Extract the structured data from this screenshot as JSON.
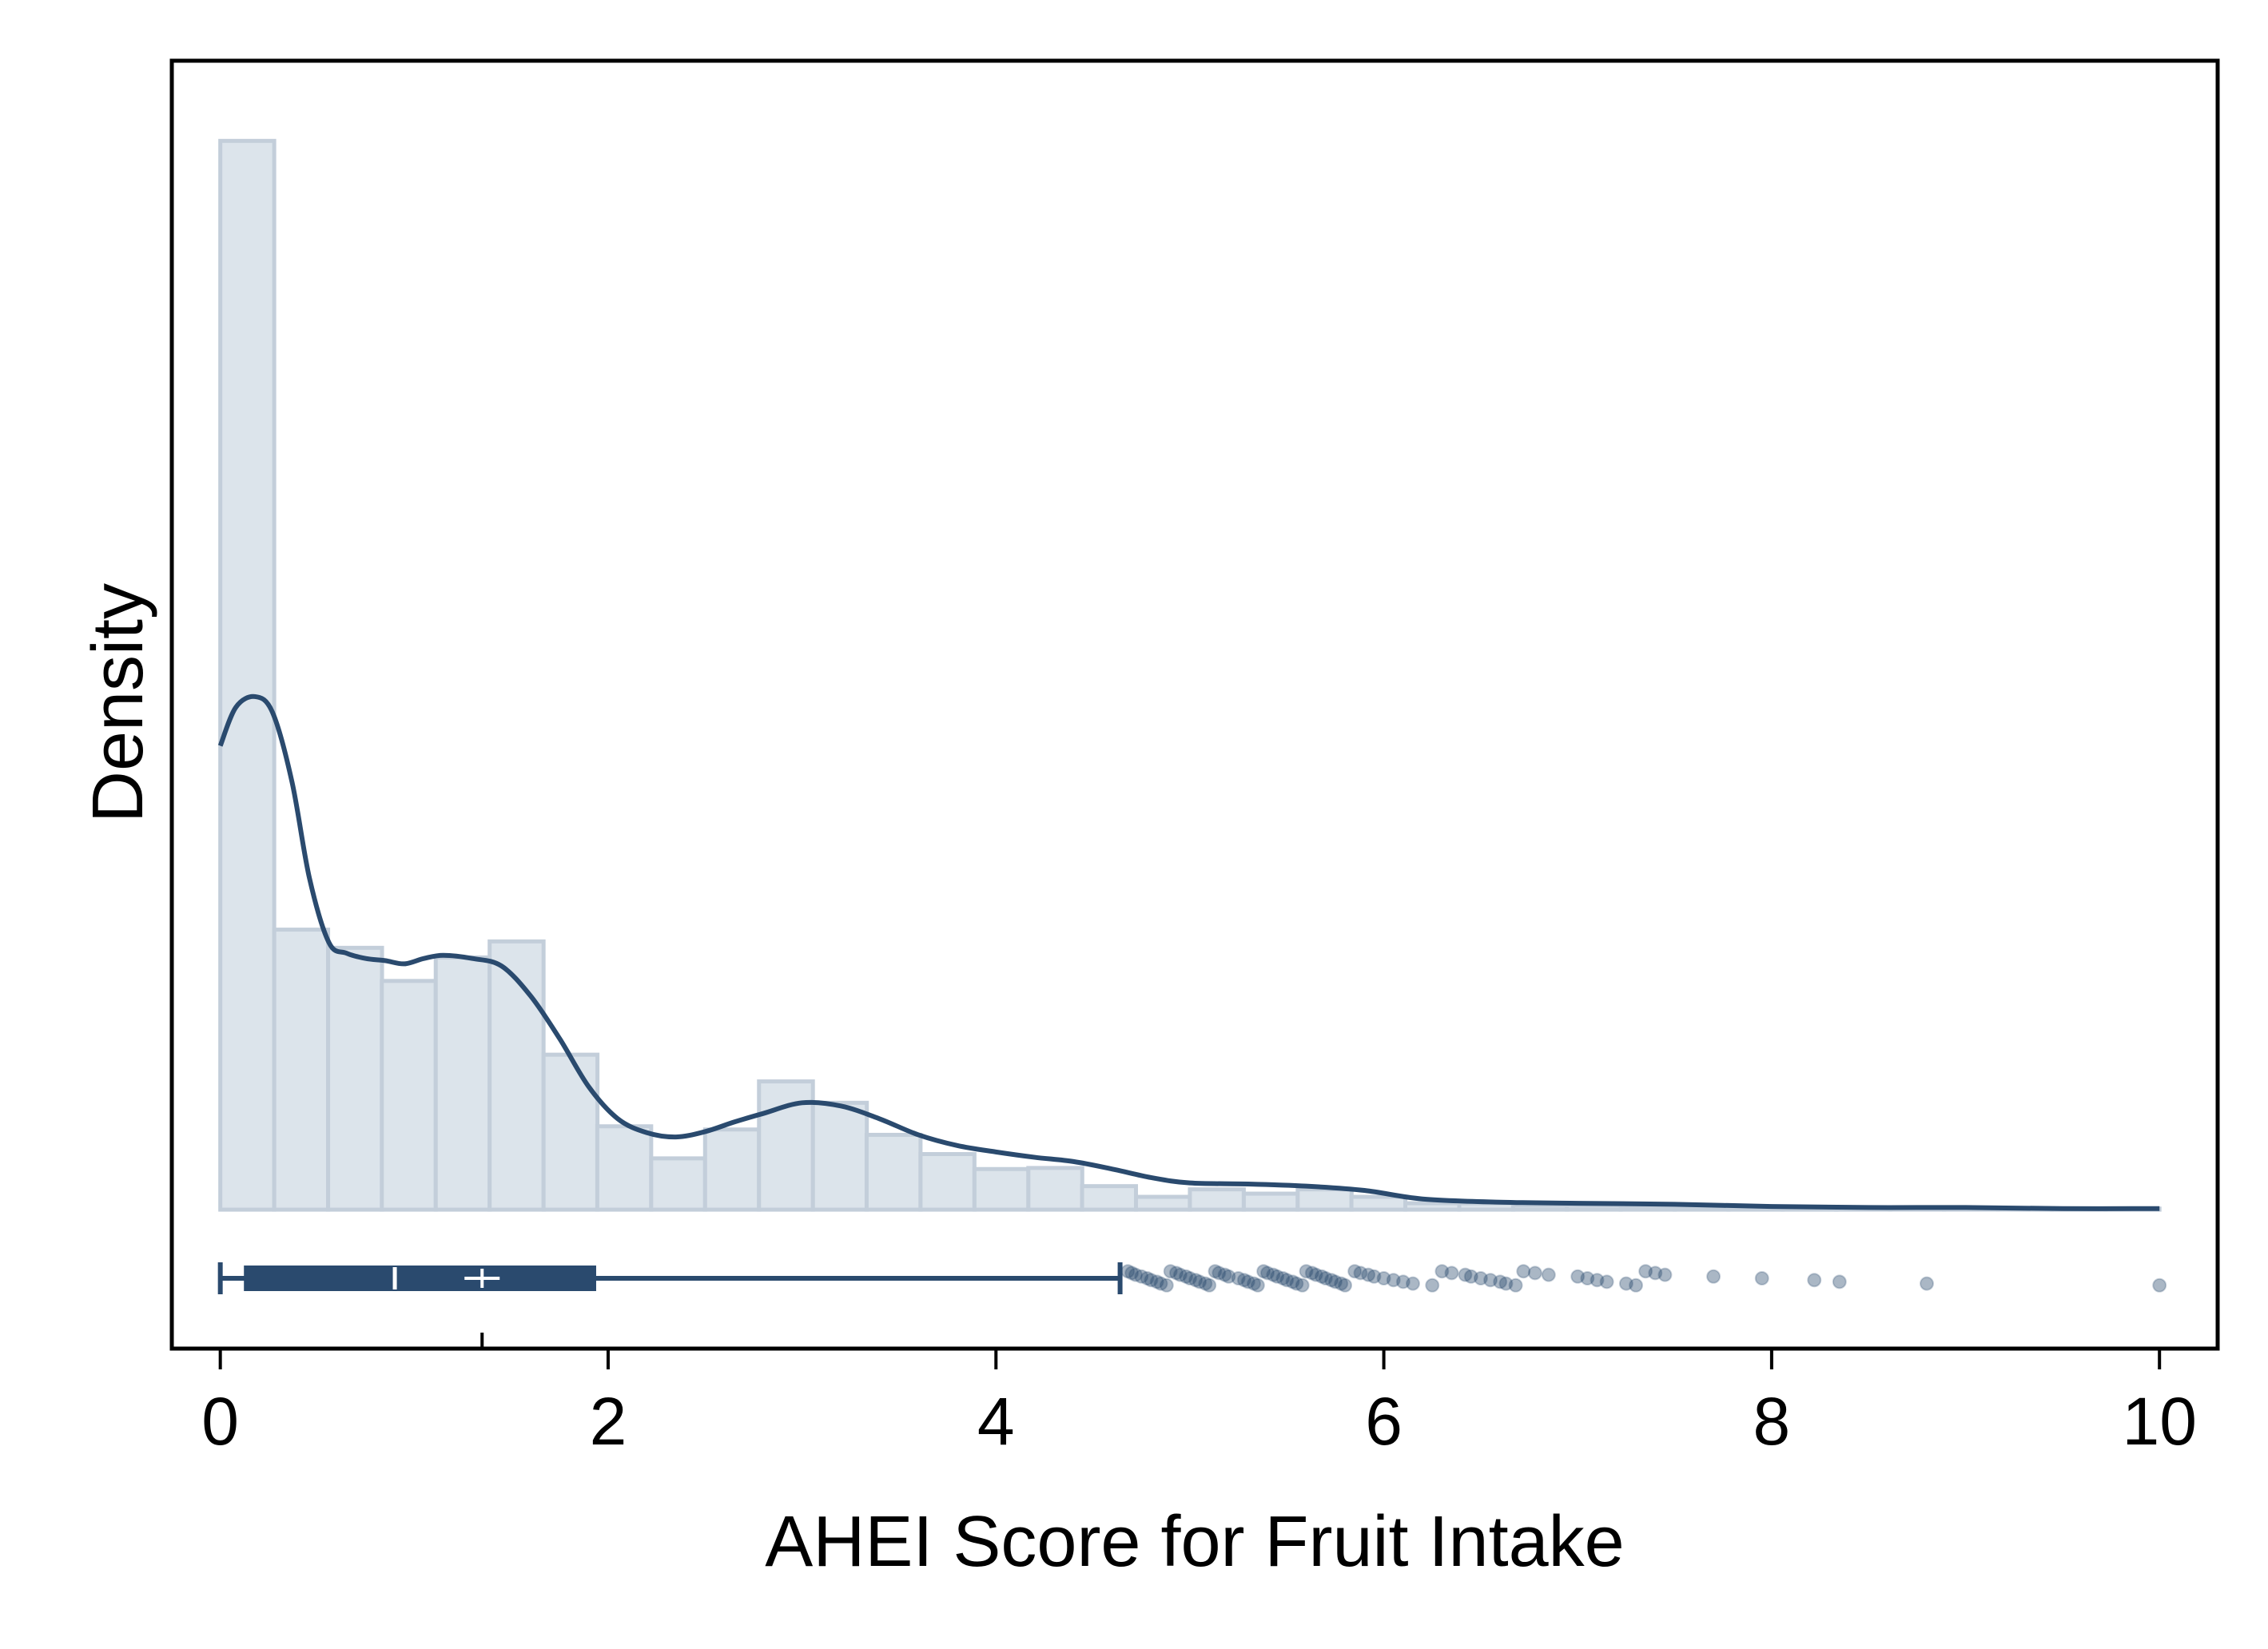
{
  "chart_data": {
    "type": "histogram",
    "xlabel": "AHEI Score for Fruit Intake",
    "ylabel": "Density",
    "xlim": [
      -0.25,
      10.3
    ],
    "ylim": [
      -0.13,
      1.075
    ],
    "x_ticks": [
      0,
      2,
      4,
      6,
      8,
      10
    ],
    "x_tick_labels": [
      "0",
      "2",
      "4",
      "6",
      "8",
      "10"
    ],
    "grid": false,
    "legend": "none",
    "colors": {
      "bar_fill": "#dce4eb",
      "bar_stroke": "#c3ceda",
      "series": "#2a4a6e",
      "dots": "#8fa3b8"
    },
    "histogram": {
      "bin_width": 0.278,
      "bin_starts": [
        0,
        0.278,
        0.556,
        0.833,
        1.111,
        1.389,
        1.667,
        1.944,
        2.222,
        2.5,
        2.778,
        3.056,
        3.333,
        3.611,
        3.889,
        4.167,
        4.444,
        4.722,
        5.0,
        5.278,
        5.556,
        5.833,
        6.111,
        6.389,
        6.667,
        6.944,
        7.222,
        7.5,
        7.778,
        8.056,
        8.333,
        8.611,
        8.889,
        9.167,
        9.444,
        9.722
      ],
      "densities": [
        1.0,
        0.262,
        0.245,
        0.214,
        0.236,
        0.251,
        0.145,
        0.078,
        0.048,
        0.075,
        0.12,
        0.1,
        0.07,
        0.052,
        0.038,
        0.039,
        0.022,
        0.012,
        0.019,
        0.015,
        0.019,
        0.012,
        0.006,
        0.006,
        0.004,
        0.004,
        0.003,
        0.002,
        0.002,
        0.002,
        0.002,
        0.002,
        0.001,
        0.001,
        0.001,
        0.001
      ]
    },
    "kde": {
      "x": [
        0,
        0.08,
        0.18,
        0.27,
        0.37,
        0.46,
        0.56,
        0.65,
        0.75,
        0.85,
        0.95,
        1.05,
        1.15,
        1.3,
        1.45,
        1.6,
        1.75,
        1.9,
        2.05,
        2.2,
        2.35,
        2.5,
        2.65,
        2.8,
        3.0,
        3.2,
        3.4,
        3.6,
        3.8,
        4.0,
        4.2,
        4.4,
        4.6,
        4.8,
        5.0,
        5.3,
        5.6,
        5.9,
        6.2,
        6.6,
        7.0,
        7.5,
        8.0,
        8.5,
        9.0,
        9.5,
        10.0
      ],
      "y": [
        0.434,
        0.47,
        0.48,
        0.465,
        0.4,
        0.31,
        0.25,
        0.24,
        0.235,
        0.233,
        0.23,
        0.235,
        0.238,
        0.235,
        0.228,
        0.2,
        0.16,
        0.115,
        0.085,
        0.072,
        0.068,
        0.073,
        0.082,
        0.09,
        0.1,
        0.097,
        0.085,
        0.07,
        0.06,
        0.054,
        0.049,
        0.045,
        0.038,
        0.03,
        0.025,
        0.024,
        0.022,
        0.018,
        0.01,
        0.007,
        0.006,
        0.005,
        0.003,
        0.002,
        0.002,
        0.001,
        0.001
      ]
    },
    "boxplot": {
      "min": 0,
      "q1": 0.13,
      "median": 0.9,
      "mean": 1.35,
      "q3": 1.93,
      "upper_whisker": 4.64,
      "outliers": [
        4.68,
        4.7,
        4.72,
        4.75,
        4.78,
        4.8,
        4.83,
        4.85,
        4.88,
        4.9,
        4.93,
        4.95,
        4.98,
        5.0,
        5.03,
        5.05,
        5.08,
        5.1,
        5.13,
        5.15,
        5.18,
        5.2,
        5.25,
        5.28,
        5.3,
        5.33,
        5.35,
        5.38,
        5.4,
        5.43,
        5.45,
        5.48,
        5.5,
        5.53,
        5.55,
        5.58,
        5.6,
        5.63,
        5.65,
        5.68,
        5.7,
        5.73,
        5.75,
        5.78,
        5.8,
        5.85,
        5.88,
        5.92,
        5.95,
        6.0,
        6.05,
        6.1,
        6.15,
        6.25,
        6.3,
        6.35,
        6.42,
        6.45,
        6.5,
        6.55,
        6.6,
        6.63,
        6.68,
        6.72,
        6.78,
        6.85,
        7.0,
        7.05,
        7.1,
        7.15,
        7.25,
        7.3,
        7.35,
        7.4,
        7.45,
        7.7,
        7.95,
        8.22,
        8.35,
        8.8,
        10.0
      ]
    }
  }
}
